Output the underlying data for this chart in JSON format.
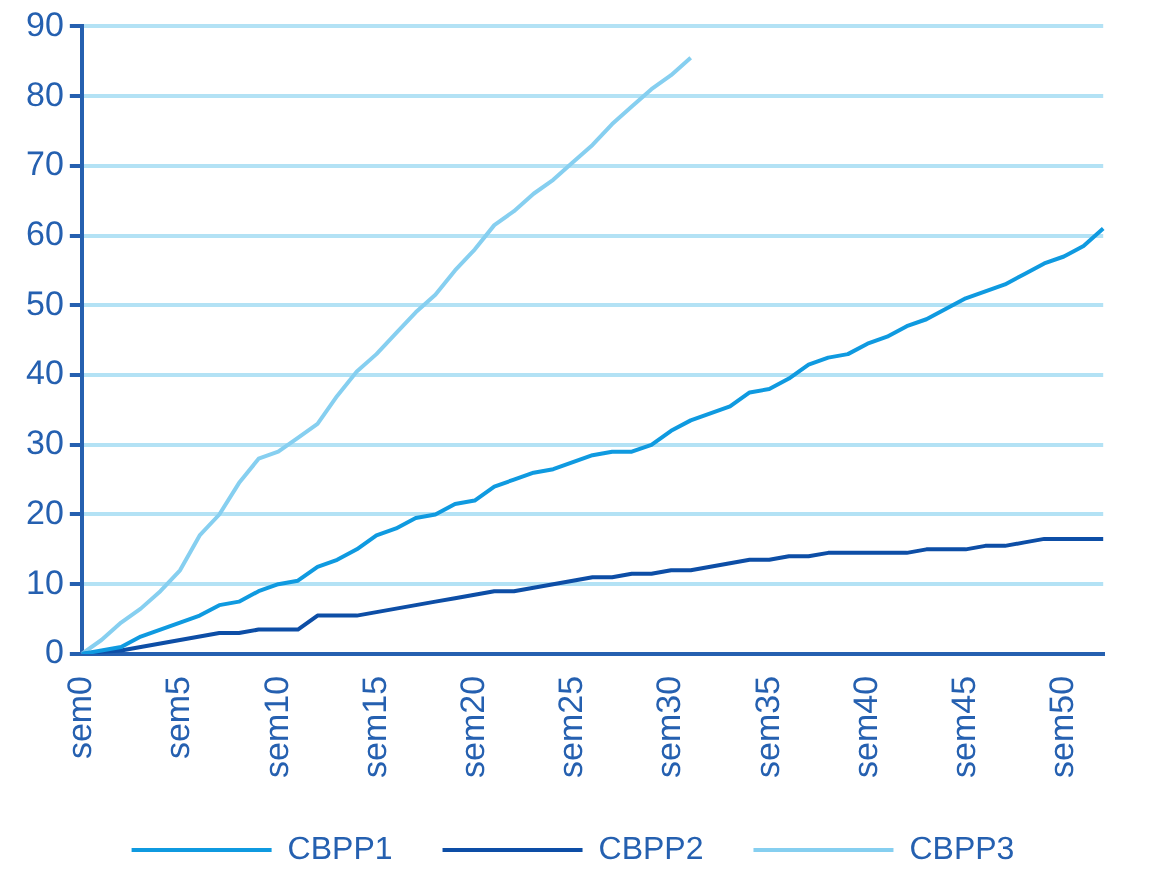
{
  "chart_data": {
    "type": "line",
    "categories": [
      "sem0",
      null,
      null,
      null,
      null,
      "sem5",
      null,
      null,
      null,
      null,
      "sem10",
      null,
      null,
      null,
      null,
      "sem15",
      null,
      null,
      null,
      null,
      "sem20",
      null,
      null,
      null,
      null,
      "sem25",
      null,
      null,
      null,
      null,
      "sem30",
      null,
      null,
      null,
      null,
      "sem35",
      null,
      null,
      null,
      null,
      "sem40",
      null,
      null,
      null,
      null,
      "sem45",
      null,
      null,
      null,
      null,
      "sem50",
      null,
      null
    ],
    "series": [
      {
        "name": "CBPP1",
        "color": "#0f9ae0",
        "values": [
          0,
          0.5,
          1,
          2.5,
          3.5,
          4.5,
          5.5,
          7,
          7.5,
          9,
          10,
          10.5,
          12.5,
          13.5,
          15,
          17,
          18,
          19.5,
          20,
          21.5,
          22,
          24,
          25,
          26,
          26.5,
          27.5,
          28.5,
          29,
          29,
          30,
          32,
          33.5,
          34.5,
          35.5,
          37.5,
          38,
          39.5,
          41.5,
          42.5,
          43,
          44.5,
          45.5,
          47,
          48,
          49.5,
          51,
          52,
          53,
          54.5,
          56,
          57,
          58.5,
          61
        ]
      },
      {
        "name": "CBPP2",
        "color": "#0d4ea6",
        "values": [
          0,
          0.3,
          0.5,
          1,
          1.5,
          2,
          2.5,
          3,
          3,
          3.5,
          3.5,
          3.5,
          5.5,
          5.5,
          5.5,
          6,
          6.5,
          7,
          7.5,
          8,
          8.5,
          9,
          9,
          9.5,
          10,
          10.5,
          11,
          11,
          11.5,
          11.5,
          12,
          12,
          12.5,
          13,
          13.5,
          13.5,
          14,
          14,
          14.5,
          14.5,
          14.5,
          14.5,
          14.5,
          15,
          15,
          15,
          15.5,
          15.5,
          16,
          16.5,
          16.5,
          16.5,
          16.5
        ]
      },
      {
        "name": "CBPP3",
        "color": "#86cff0",
        "values": [
          0,
          2,
          4.5,
          6.5,
          9,
          12,
          17,
          20,
          24.5,
          28,
          29,
          31,
          33,
          37,
          40.5,
          43,
          46,
          49,
          51.5,
          55,
          58,
          61.5,
          63.5,
          66,
          68,
          70.5,
          73,
          76,
          78.5,
          81,
          83,
          85.5,
          null,
          null,
          null,
          null,
          null,
          null,
          null,
          null,
          null,
          null,
          null,
          null,
          null,
          null,
          null,
          null,
          null,
          null,
          null,
          null,
          null
        ]
      }
    ],
    "ylim": [
      0,
      90
    ],
    "yticks": [
      0,
      10,
      20,
      30,
      40,
      50,
      60,
      70,
      80,
      90
    ],
    "grid": "y",
    "legend": "bottom"
  }
}
